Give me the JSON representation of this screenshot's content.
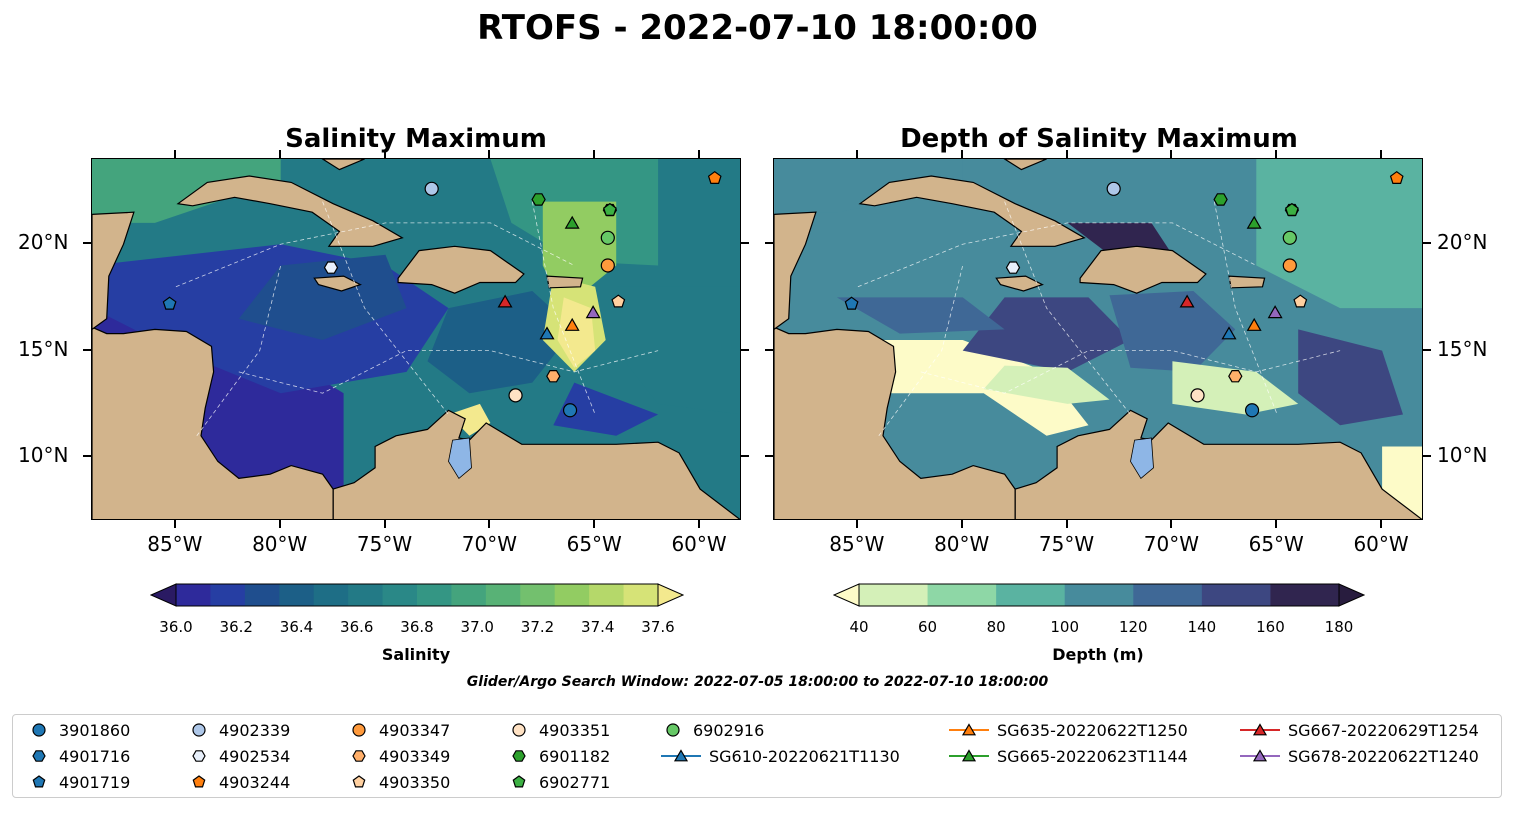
{
  "title": "RTOFS - 2022-07-10 18:00:00",
  "panels": [
    {
      "title": "Salinity Maximum"
    },
    {
      "title": "Depth of Salinity Maximum"
    }
  ],
  "axes": {
    "lon_ticks": [
      "85°W",
      "80°W",
      "75°W",
      "70°W",
      "65°W",
      "60°W"
    ],
    "lat_ticks": [
      "20°N",
      "15°N",
      "10°N"
    ]
  },
  "colorbars": [
    {
      "label": "Salinity",
      "ticks": [
        "36.0",
        "36.2",
        "36.4",
        "36.6",
        "36.8",
        "37.0",
        "37.2",
        "37.4",
        "37.6"
      ],
      "colors": [
        "#2a1a63",
        "#2e2a9b",
        "#263ea3",
        "#1f4e8e",
        "#1c5f87",
        "#1e6e86",
        "#237a86",
        "#2a8887",
        "#349684",
        "#44a47d",
        "#58b276",
        "#73c06e",
        "#92cc62",
        "#b5d86a",
        "#d6e377",
        "#f3e98e"
      ]
    },
    {
      "label": "Depth (m)",
      "ticks": [
        "40",
        "60",
        "80",
        "100",
        "120",
        "140",
        "160",
        "180"
      ],
      "colors": [
        "#fdfbc8",
        "#d4f0b8",
        "#8ed7a6",
        "#5ab3a1",
        "#478b9c",
        "#3f6896",
        "#3d4781",
        "#30254f",
        "#281c3e"
      ]
    }
  ],
  "search_window": "Glider/Argo Search Window: 2022-07-05 18:00:00 to 2022-07-10 18:00:00",
  "legend": {
    "items": [
      {
        "label": "3901860",
        "marker": "circle",
        "color": "#1f77b4",
        "line": false
      },
      {
        "label": "4901716",
        "marker": "hexagon",
        "color": "#1f77b4",
        "line": false
      },
      {
        "label": "4901719",
        "marker": "pentagon",
        "color": "#1f77b4",
        "line": false
      },
      {
        "label": "4902339",
        "marker": "circle",
        "color": "#aec7e8",
        "line": false
      },
      {
        "label": "4902534",
        "marker": "hexagon",
        "color": "#e8f0fb",
        "line": false
      },
      {
        "label": "4903244",
        "marker": "pentagon",
        "color": "#ff7f0e",
        "line": false
      },
      {
        "label": "4903347",
        "marker": "circle",
        "color": "#ff9a3c",
        "line": false
      },
      {
        "label": "4903349",
        "marker": "hexagon",
        "color": "#ffaf6a",
        "line": false
      },
      {
        "label": "4903350",
        "marker": "pentagon",
        "color": "#ffd0a0",
        "line": false
      },
      {
        "label": "4903351",
        "marker": "circle",
        "color": "#ffe2c4",
        "line": false
      },
      {
        "label": "6901182",
        "marker": "hexagon",
        "color": "#2ca02c",
        "line": false
      },
      {
        "label": "6902771",
        "marker": "pentagon",
        "color": "#3cb043",
        "line": false
      },
      {
        "label": "6902916",
        "marker": "circle",
        "color": "#66c866",
        "line": false
      },
      {
        "label": "SG610-20220621T1130",
        "marker": "triangle",
        "color": "#1f77b4",
        "line": true
      },
      {
        "label": "SG635-20220622T1250",
        "marker": "triangle",
        "color": "#ff7f0e",
        "line": true
      },
      {
        "label": "SG665-20220623T1144",
        "marker": "triangle",
        "color": "#2ca02c",
        "line": true
      },
      {
        "label": "SG667-20220629T1254",
        "marker": "triangle",
        "color": "#d62728",
        "line": true
      },
      {
        "label": "SG678-20220622T1240",
        "marker": "triangle",
        "color": "#9467bd",
        "line": true
      }
    ]
  },
  "chart_data": {
    "type": "map",
    "extent": {
      "lon": [
        -89,
        -58
      ],
      "lat": [
        7,
        24
      ]
    },
    "colors": {
      "land": "#d2b48c",
      "lakes": "#8eb6e6"
    },
    "platforms": [
      {
        "id": "3901860",
        "lon": -66.2,
        "lat": 12.2
      },
      {
        "id": "4901716",
        "lon": -64.3,
        "lat": 21.6
      },
      {
        "id": "4901719",
        "lon": -85.3,
        "lat": 17.2
      },
      {
        "id": "4902339",
        "lon": -72.8,
        "lat": 22.6
      },
      {
        "id": "4902534",
        "lon": -77.6,
        "lat": 18.9
      },
      {
        "id": "4903244",
        "lon": -59.3,
        "lat": 23.1
      },
      {
        "id": "4903347",
        "lon": -64.4,
        "lat": 19.0
      },
      {
        "id": "4903349",
        "lon": -67.0,
        "lat": 13.8
      },
      {
        "id": "4903350",
        "lon": -63.9,
        "lat": 17.3
      },
      {
        "id": "4903351",
        "lon": -68.8,
        "lat": 12.9
      },
      {
        "id": "6901182",
        "lon": -67.7,
        "lat": 22.1
      },
      {
        "id": "6902771",
        "lon": -64.3,
        "lat": 21.6
      },
      {
        "id": "6902916",
        "lon": -64.4,
        "lat": 20.3
      },
      {
        "id": "SG610-20220621T1130",
        "lon": -67.3,
        "lat": 15.8
      },
      {
        "id": "SG635-20220622T1250",
        "lon": -66.1,
        "lat": 16.2
      },
      {
        "id": "SG665-20220623T1144",
        "lon": -66.1,
        "lat": 21.0
      },
      {
        "id": "SG667-20220629T1254",
        "lon": -69.3,
        "lat": 17.3
      },
      {
        "id": "SG678-20220622T1240",
        "lon": -65.1,
        "lat": 16.8
      }
    ]
  }
}
